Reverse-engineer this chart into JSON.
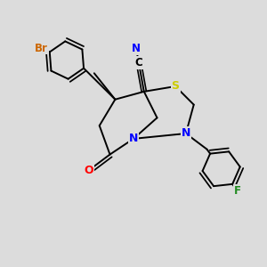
{
  "bg_color": "#dcdcdc",
  "bond_color": "#000000",
  "atom_colors": {
    "N": "#0000ff",
    "O": "#ff0000",
    "S": "#cccc00",
    "Br": "#cc6600",
    "F": "#228B22",
    "C": "#000000"
  },
  "figsize": [
    3.0,
    3.0
  ],
  "dpi": 100,
  "lw": 1.4
}
